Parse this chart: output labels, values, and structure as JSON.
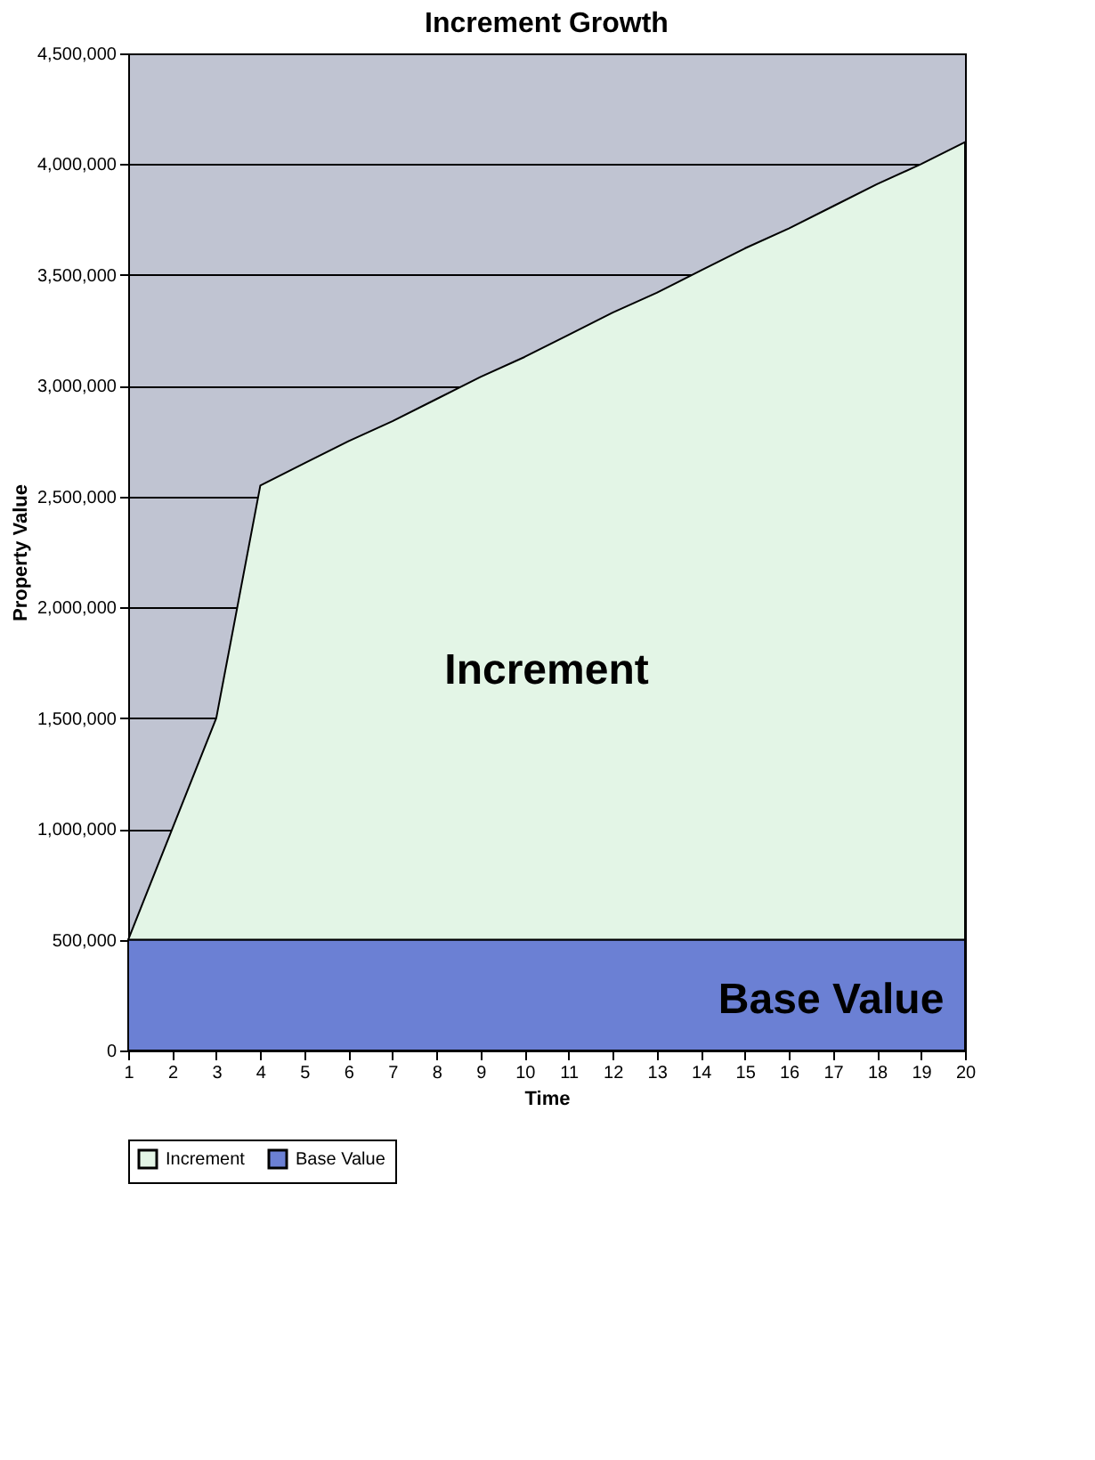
{
  "chart_data": {
    "type": "area",
    "stacked": true,
    "title": "Increment Growth",
    "xlabel": "Time",
    "ylabel": "Property Value",
    "x": [
      1,
      2,
      3,
      4,
      5,
      6,
      7,
      8,
      9,
      10,
      11,
      12,
      13,
      14,
      15,
      16,
      17,
      18,
      19,
      20
    ],
    "series": [
      {
        "name": "Base Value",
        "color": "#6b80d4",
        "values": [
          500000,
          500000,
          500000,
          500000,
          500000,
          500000,
          500000,
          500000,
          500000,
          500000,
          500000,
          500000,
          500000,
          500000,
          500000,
          500000,
          500000,
          500000,
          500000,
          500000
        ]
      },
      {
        "name": "Increment",
        "color": "#e3f5e6",
        "values": [
          0,
          500000,
          1000000,
          2050000,
          2150000,
          2250000,
          2340000,
          2440000,
          2540000,
          2630000,
          2730000,
          2830000,
          2920000,
          3020000,
          3120000,
          3210000,
          3310000,
          3410000,
          3500000,
          3600000
        ]
      }
    ],
    "xlim": [
      1,
      20
    ],
    "xticks": [
      1,
      2,
      3,
      4,
      5,
      6,
      7,
      8,
      9,
      10,
      11,
      12,
      13,
      14,
      15,
      16,
      17,
      18,
      19,
      20
    ],
    "ylim": [
      0,
      4500000
    ],
    "yticks": [
      0,
      {
        "value": 500000,
        "label": "500,000"
      },
      {
        "value": 1000000,
        "label": "1,000,000"
      },
      {
        "value": 1500000,
        "label": "1,500,000"
      },
      {
        "value": 2000000,
        "label": "2,000,000"
      },
      {
        "value": 2500000,
        "label": "2,500,000"
      },
      {
        "value": 3000000,
        "label": "3,000,000"
      },
      {
        "value": 3500000,
        "label": "3,500,000"
      },
      {
        "value": 4000000,
        "label": "4,000,000"
      },
      {
        "value": 4500000,
        "label": "4,500,000"
      }
    ],
    "grid": "y",
    "legend": "bottom",
    "annotations": [
      "Increment",
      "Base Value"
    ]
  }
}
